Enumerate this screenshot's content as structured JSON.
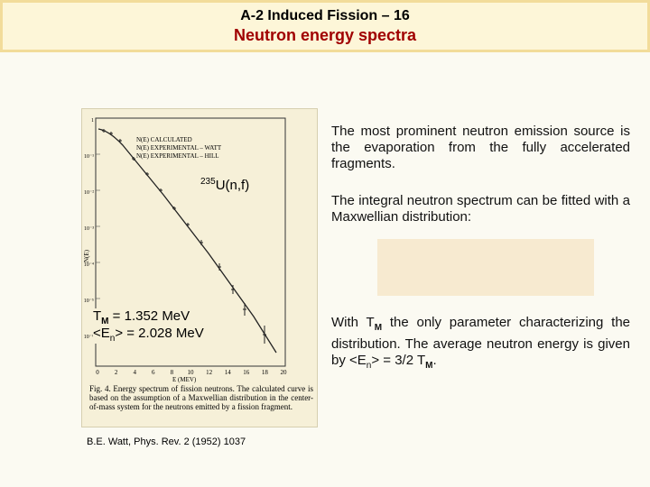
{
  "header": {
    "title": "A-2 Induced Fission – 16",
    "subtitle": "Neutron energy spectra"
  },
  "figure": {
    "legend": [
      "N(E)  CALCULATED",
      "N(E)  EXPERIMENTAL – WATT",
      "N(E)  EXPERIMENTAL – HILL"
    ],
    "y_axis_label": "N(E)",
    "x_axis_label": "E  (MEV)",
    "x_tick_labels": [
      "0",
      "2",
      "4",
      "6",
      "8",
      "10",
      "12",
      "14",
      "16",
      "18",
      "20"
    ],
    "y_tick_labels": [
      "1",
      "10⁻¹",
      "10⁻²",
      "10⁻³",
      "10⁻⁴",
      "10⁻⁵",
      "10⁻⁶"
    ],
    "reaction": {
      "mass": "235",
      "text": "U(n,f)"
    },
    "tm": {
      "symbol": "T",
      "sub": "M",
      "text": " = 1.352 MeV"
    },
    "en": {
      "open": "<E",
      "sub": "n",
      "text": "> = 2.028 MeV"
    },
    "caption": "Fig. 4. Energy spectrum of fission neutrons. The calculated curve is based on the assumption of a Maxwellian distribution in the center-of-mass system for the neutrons emitted by a fission fragment."
  },
  "citation": "B.E. Watt, Phys. Rev. 2 (1952) 1037",
  "paragraphs": {
    "p1": "The most prominent neutron emission source is the evaporation from the fully accelerated fragments.",
    "p2": "The integral neutron spectrum can be fitted with a Maxwellian distribution:",
    "p3": {
      "a": "With T",
      "sub1": "M",
      "b": " the only parameter characterizing the distribution. The average neutron energy is given by <E",
      "sub2": "n",
      "c": "> = 3/2 T",
      "sub3": "M",
      "d": "."
    }
  }
}
